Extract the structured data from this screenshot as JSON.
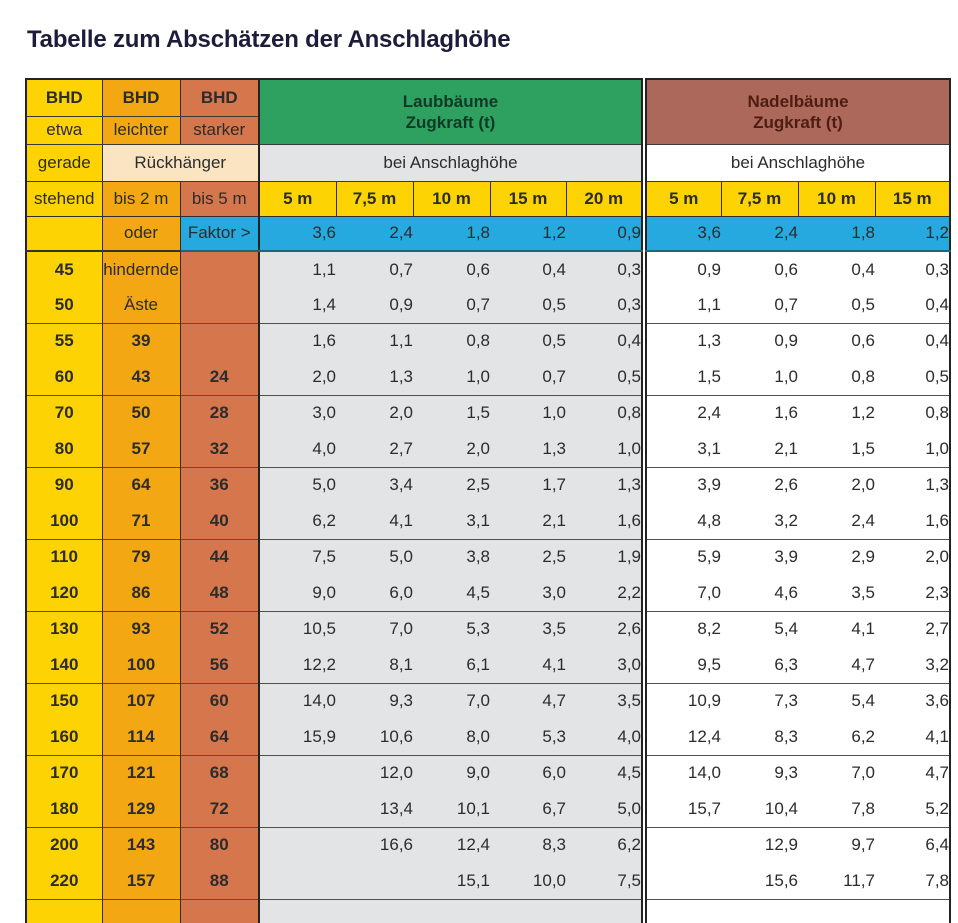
{
  "page": {
    "title": "Tabelle zum Abschätzen der Anschlaghöhe"
  },
  "table": {
    "left": {
      "c1": {
        "h": "BHD",
        "l1": "etwa",
        "l2": "gerade",
        "l3": "stehend"
      },
      "c2": {
        "h": "BHD",
        "l1": "leichter",
        "l3": "bis 2 m"
      },
      "c3": {
        "h": "BHD",
        "l1": "starker",
        "l3": "bis 5 m"
      },
      "rueckhaenger": "Rückhänger"
    },
    "laub": {
      "title": "Laubbäume",
      "subtitle": "Zugkraft (t)",
      "anschlag": "bei Anschlaghöhe",
      "heights": [
        "5 m",
        "7,5 m",
        "10 m",
        "15 m",
        "20 m"
      ]
    },
    "nadel": {
      "title": "Nadelbäume",
      "subtitle": "Zugkraft (t)",
      "anschlag": "bei Anschlaghöhe",
      "heights": [
        "5 m",
        "7,5 m",
        "10 m",
        "15 m"
      ]
    },
    "faktor": {
      "c1": "",
      "c2": "oder",
      "c3": "Faktor >",
      "laub": [
        "3,6",
        "2,4",
        "1,8",
        "1,2",
        "0,9"
      ],
      "nadel": [
        "3,6",
        "2,4",
        "1,8",
        "1,2"
      ]
    },
    "rows": [
      {
        "bhd": "45",
        "c2": "hindernde",
        "c3": "",
        "laub": [
          "1,1",
          "0,7",
          "0,6",
          "0,4",
          "0,3"
        ],
        "nadel": [
          "0,9",
          "0,6",
          "0,4",
          "0,3"
        ]
      },
      {
        "bhd": "50",
        "c2": "Äste",
        "c3": "",
        "laub": [
          "1,4",
          "0,9",
          "0,7",
          "0,5",
          "0,3"
        ],
        "nadel": [
          "1,1",
          "0,7",
          "0,5",
          "0,4"
        ]
      },
      {
        "bhd": "55",
        "c2": "39",
        "c3": "",
        "laub": [
          "1,6",
          "1,1",
          "0,8",
          "0,5",
          "0,4"
        ],
        "nadel": [
          "1,3",
          "0,9",
          "0,6",
          "0,4"
        ]
      },
      {
        "bhd": "60",
        "c2": "43",
        "c3": "24",
        "laub": [
          "2,0",
          "1,3",
          "1,0",
          "0,7",
          "0,5"
        ],
        "nadel": [
          "1,5",
          "1,0",
          "0,8",
          "0,5"
        ]
      },
      {
        "bhd": "70",
        "c2": "50",
        "c3": "28",
        "laub": [
          "3,0",
          "2,0",
          "1,5",
          "1,0",
          "0,8"
        ],
        "nadel": [
          "2,4",
          "1,6",
          "1,2",
          "0,8"
        ]
      },
      {
        "bhd": "80",
        "c2": "57",
        "c3": "32",
        "laub": [
          "4,0",
          "2,7",
          "2,0",
          "1,3",
          "1,0"
        ],
        "nadel": [
          "3,1",
          "2,1",
          "1,5",
          "1,0"
        ]
      },
      {
        "bhd": "90",
        "c2": "64",
        "c3": "36",
        "laub": [
          "5,0",
          "3,4",
          "2,5",
          "1,7",
          "1,3"
        ],
        "nadel": [
          "3,9",
          "2,6",
          "2,0",
          "1,3"
        ]
      },
      {
        "bhd": "100",
        "c2": "71",
        "c3": "40",
        "laub": [
          "6,2",
          "4,1",
          "3,1",
          "2,1",
          "1,6"
        ],
        "nadel": [
          "4,8",
          "3,2",
          "2,4",
          "1,6"
        ]
      },
      {
        "bhd": "110",
        "c2": "79",
        "c3": "44",
        "laub": [
          "7,5",
          "5,0",
          "3,8",
          "2,5",
          "1,9"
        ],
        "nadel": [
          "5,9",
          "3,9",
          "2,9",
          "2,0"
        ]
      },
      {
        "bhd": "120",
        "c2": "86",
        "c3": "48",
        "laub": [
          "9,0",
          "6,0",
          "4,5",
          "3,0",
          "2,2"
        ],
        "nadel": [
          "7,0",
          "4,6",
          "3,5",
          "2,3"
        ]
      },
      {
        "bhd": "130",
        "c2": "93",
        "c3": "52",
        "laub": [
          "10,5",
          "7,0",
          "5,3",
          "3,5",
          "2,6"
        ],
        "nadel": [
          "8,2",
          "5,4",
          "4,1",
          "2,7"
        ]
      },
      {
        "bhd": "140",
        "c2": "100",
        "c3": "56",
        "laub": [
          "12,2",
          "8,1",
          "6,1",
          "4,1",
          "3,0"
        ],
        "nadel": [
          "9,5",
          "6,3",
          "4,7",
          "3,2"
        ]
      },
      {
        "bhd": "150",
        "c2": "107",
        "c3": "60",
        "laub": [
          "14,0",
          "9,3",
          "7,0",
          "4,7",
          "3,5"
        ],
        "nadel": [
          "10,9",
          "7,3",
          "5,4",
          "3,6"
        ]
      },
      {
        "bhd": "160",
        "c2": "114",
        "c3": "64",
        "laub": [
          "15,9",
          "10,6",
          "8,0",
          "5,3",
          "4,0"
        ],
        "nadel": [
          "12,4",
          "8,3",
          "6,2",
          "4,1"
        ]
      },
      {
        "bhd": "170",
        "c2": "121",
        "c3": "68",
        "laub": [
          "",
          "12,0",
          "9,0",
          "6,0",
          "4,5"
        ],
        "nadel": [
          "14,0",
          "9,3",
          "7,0",
          "4,7"
        ]
      },
      {
        "bhd": "180",
        "c2": "129",
        "c3": "72",
        "laub": [
          "",
          "13,4",
          "10,1",
          "6,7",
          "5,0"
        ],
        "nadel": [
          "15,7",
          "10,4",
          "7,8",
          "5,2"
        ]
      },
      {
        "bhd": "200",
        "c2": "143",
        "c3": "80",
        "laub": [
          "",
          "16,6",
          "12,4",
          "8,3",
          "6,2"
        ],
        "nadel": [
          "",
          "12,9",
          "9,7",
          "6,4"
        ]
      },
      {
        "bhd": "220",
        "c2": "157",
        "c3": "88",
        "laub": [
          "",
          "",
          "15,1",
          "10,0",
          "7,5"
        ],
        "nadel": [
          "",
          "15,6",
          "11,7",
          "7,8"
        ]
      }
    ]
  },
  "colors": {
    "yellow": "#fdd303",
    "orange": "#f3a712",
    "terracotta": "#d5764d",
    "green": "#2ea160",
    "brown": "#ad685c",
    "blue": "#25a9de",
    "cream": "#fae4c2",
    "grey": "#e3e4e5",
    "title_text": "#1d1d3b"
  }
}
